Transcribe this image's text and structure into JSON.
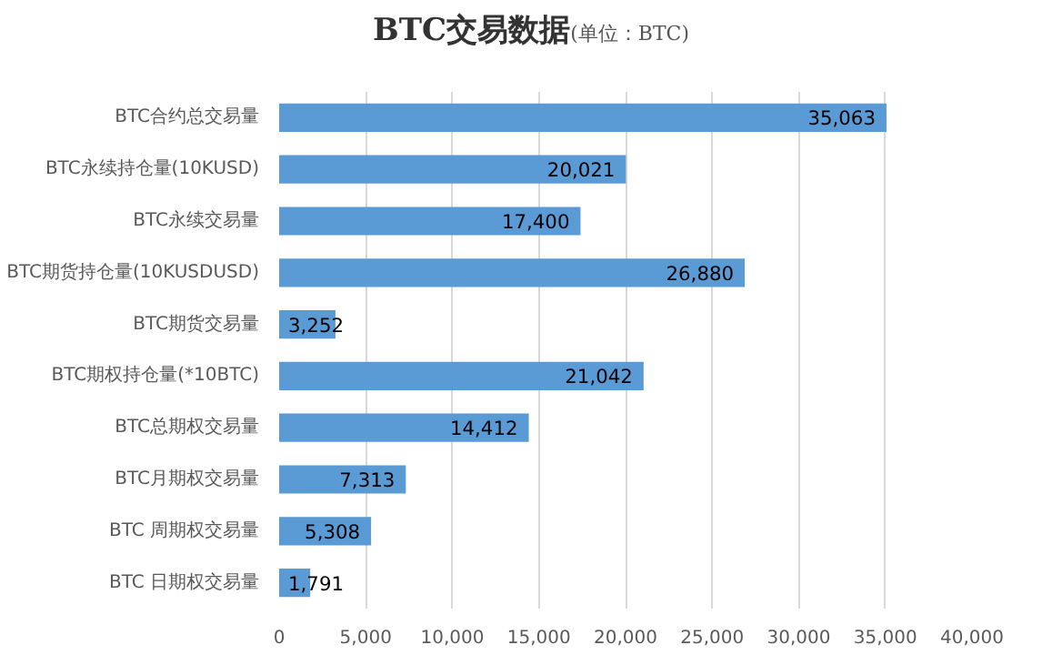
{
  "chart_data": {
    "type": "bar",
    "orientation": "horizontal",
    "title": "BTC交易数据",
    "subtitle": "(单位：BTC)",
    "categories": [
      "BTC合约总交易量",
      "BTC永续持仓量(10KUSD)",
      "BTC永续交易量",
      "BTC期货持仓量(10KUSDUSD)",
      "BTC期货交易量",
      "BTC期权持仓量(*10BTC)",
      "BTC总期权交易量",
      "BTC月期权交易量",
      "BTC 周期权交易量",
      "BTC 日期权交易量"
    ],
    "values": [
      35063,
      20021,
      17400,
      26880,
      3252,
      21042,
      14412,
      7313,
      5308,
      1791
    ],
    "value_labels": [
      "35,063",
      "20,021",
      "17,400",
      "26,880",
      "3,252",
      "21,042",
      "14,412",
      "7,313",
      "5,308",
      "1,791"
    ],
    "color": "#5b9bd5",
    "xlim": [
      0,
      40000
    ],
    "xticks": [
      {
        "value": 0,
        "label": "0"
      },
      {
        "value": 5000,
        "label": "5,000"
      },
      {
        "value": 10000,
        "label": "10,000"
      },
      {
        "value": 15000,
        "label": "15,000"
      },
      {
        "value": 20000,
        "label": "20,000"
      },
      {
        "value": 25000,
        "label": "25,000"
      },
      {
        "value": 30000,
        "label": "30,000"
      },
      {
        "value": 35000,
        "label": "35,000"
      },
      {
        "value": 40000,
        "label": "40,000"
      }
    ],
    "grid": "x"
  }
}
